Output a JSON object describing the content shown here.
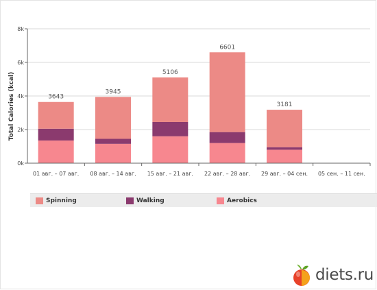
{
  "chart_data": {
    "type": "bar",
    "stacked": true,
    "ylabel": "Total Calories (kcal)",
    "ylim": [
      0,
      8000
    ],
    "yticks": [
      {
        "value": 0,
        "label": "0k"
      },
      {
        "value": 2000,
        "label": "2k"
      },
      {
        "value": 4000,
        "label": "4k"
      },
      {
        "value": 6000,
        "label": "6k"
      },
      {
        "value": 8000,
        "label": "8k"
      }
    ],
    "grid": true,
    "legend_placement": "bottom",
    "categories": [
      "01 авг. – 07 авг.",
      "08 авг. – 14 авг.",
      "15 авг. – 21 авг.",
      "22 авг. – 28 авг.",
      "29 авг. – 04 сен.",
      "05 сен. – 11 сен."
    ],
    "series": [
      {
        "name": "Aerobics",
        "color": "#f7878f",
        "values": [
          1350,
          1150,
          1600,
          1200,
          800,
          0
        ]
      },
      {
        "name": "Walking",
        "color": "#8b3a6e",
        "values": [
          700,
          300,
          850,
          650,
          150,
          0
        ]
      },
      {
        "name": "Spinning",
        "color": "#ec8a86",
        "values": [
          1593,
          2495,
          2656,
          4751,
          2231,
          0
        ]
      }
    ],
    "totals": [
      "3643",
      "3945",
      "5106",
      "6601",
      "3181",
      ""
    ],
    "legend": [
      {
        "name": "Spinning",
        "color": "#ec8a86"
      },
      {
        "name": "Walking",
        "color": "#8b3a6e"
      },
      {
        "name": "Aerobics",
        "color": "#f7878f"
      }
    ]
  },
  "watermark": {
    "text": "diets.ru",
    "icon": "apple-icon"
  }
}
